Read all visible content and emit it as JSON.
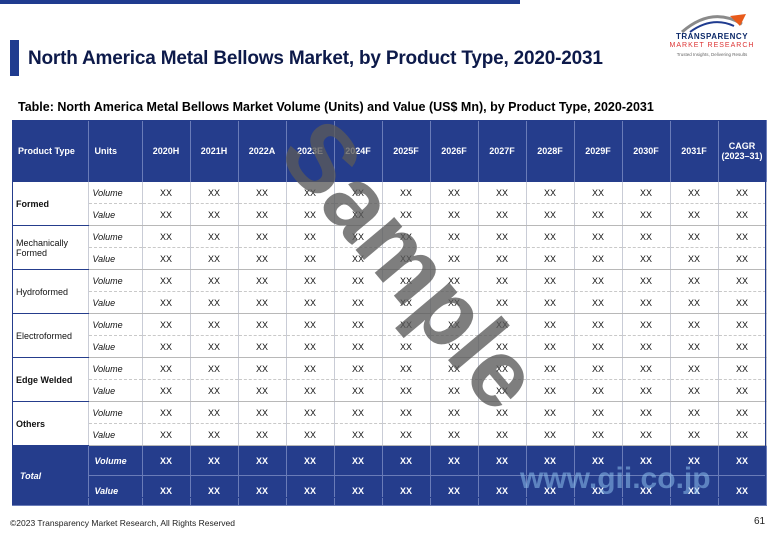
{
  "page_title": "North America Metal Bellows Market, by Product Type, 2020-2031",
  "logo": {
    "name": "TRANSPARENCY",
    "sub": "MARKET RESEARCH",
    "tag": "Trusted Insights, Delivering Results"
  },
  "table_caption": "Table: North America Metal Bellows Market Volume (Units) and Value (US$ Mn), by Product Type, 2020-2031",
  "columns": [
    "Product Type",
    "Units",
    "2020H",
    "2021H",
    "2022A",
    "2023E",
    "2024F",
    "2025F",
    "2026F",
    "2027F",
    "2028F",
    "2029F",
    "2030F",
    "2031F",
    "CAGR (2023–31)"
  ],
  "rows": [
    {
      "product": "Formed",
      "units": [
        "Volume",
        "Value"
      ]
    },
    {
      "product": "Mechanically Formed",
      "units": [
        "Volume",
        "Value"
      ]
    },
    {
      "product": "Hydroformed",
      "units": [
        "Volume",
        "Value"
      ]
    },
    {
      "product": "Electroformed",
      "units": [
        "Volume",
        "Value"
      ]
    },
    {
      "product": "Edge Welded",
      "units": [
        "Volume",
        "Value"
      ]
    },
    {
      "product": "Others",
      "units": [
        "Volume",
        "Value"
      ]
    }
  ],
  "total": {
    "product": "Total",
    "units": [
      "Volume",
      "Value"
    ]
  },
  "cell_placeholder": "XX",
  "watermark": "Sample",
  "corner_watermark": "www.gii.co.jp",
  "footer": "©2023 Transparency Market Research, All Rights Reserved",
  "page_number": "61"
}
